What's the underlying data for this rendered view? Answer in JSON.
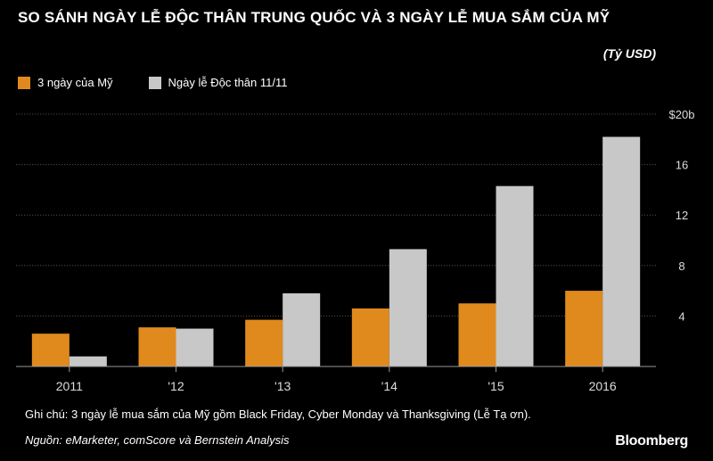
{
  "header": {
    "title": "SO SÁNH NGÀY LỄ ĐỘC THÂN TRUNG QUỐC VÀ 3 NGÀY LỄ MUA SẮM CỦA MỸ",
    "unit": "(Tỷ USD)"
  },
  "footer": {
    "note": "Ghi chú: 3 ngày lễ mua sắm của Mỹ gồm Black Friday, Cyber Monday và Thanksgiving (Lễ Tạ ơn).",
    "source": "Nguồn: eMarketer, comScore và Bernstein Analysis",
    "brand": "Bloomberg"
  },
  "colors": {
    "background": "#000000",
    "us": "#e08a1e",
    "cn": "#c8c8c8",
    "grid": "#555555",
    "text": "#ffffff"
  },
  "chart_data": {
    "type": "bar",
    "categories": [
      "2011",
      "'12",
      "'13",
      "'14",
      "'15",
      "2016"
    ],
    "series": [
      {
        "name": "3 ngày của Mỹ",
        "values": [
          2.6,
          3.1,
          3.7,
          4.6,
          5.0,
          6.0
        ]
      },
      {
        "name": "Ngày lễ Độc thân 11/11",
        "values": [
          0.8,
          3.0,
          5.8,
          9.3,
          14.3,
          18.2
        ]
      }
    ],
    "yticks": [
      "$20b",
      "16",
      "12",
      "8",
      "4"
    ],
    "ytick_values": [
      20,
      16,
      12,
      8,
      4
    ],
    "ylim": [
      0,
      20
    ],
    "grid": true,
    "y_axis_side": "right",
    "legend_position": "top-left"
  }
}
